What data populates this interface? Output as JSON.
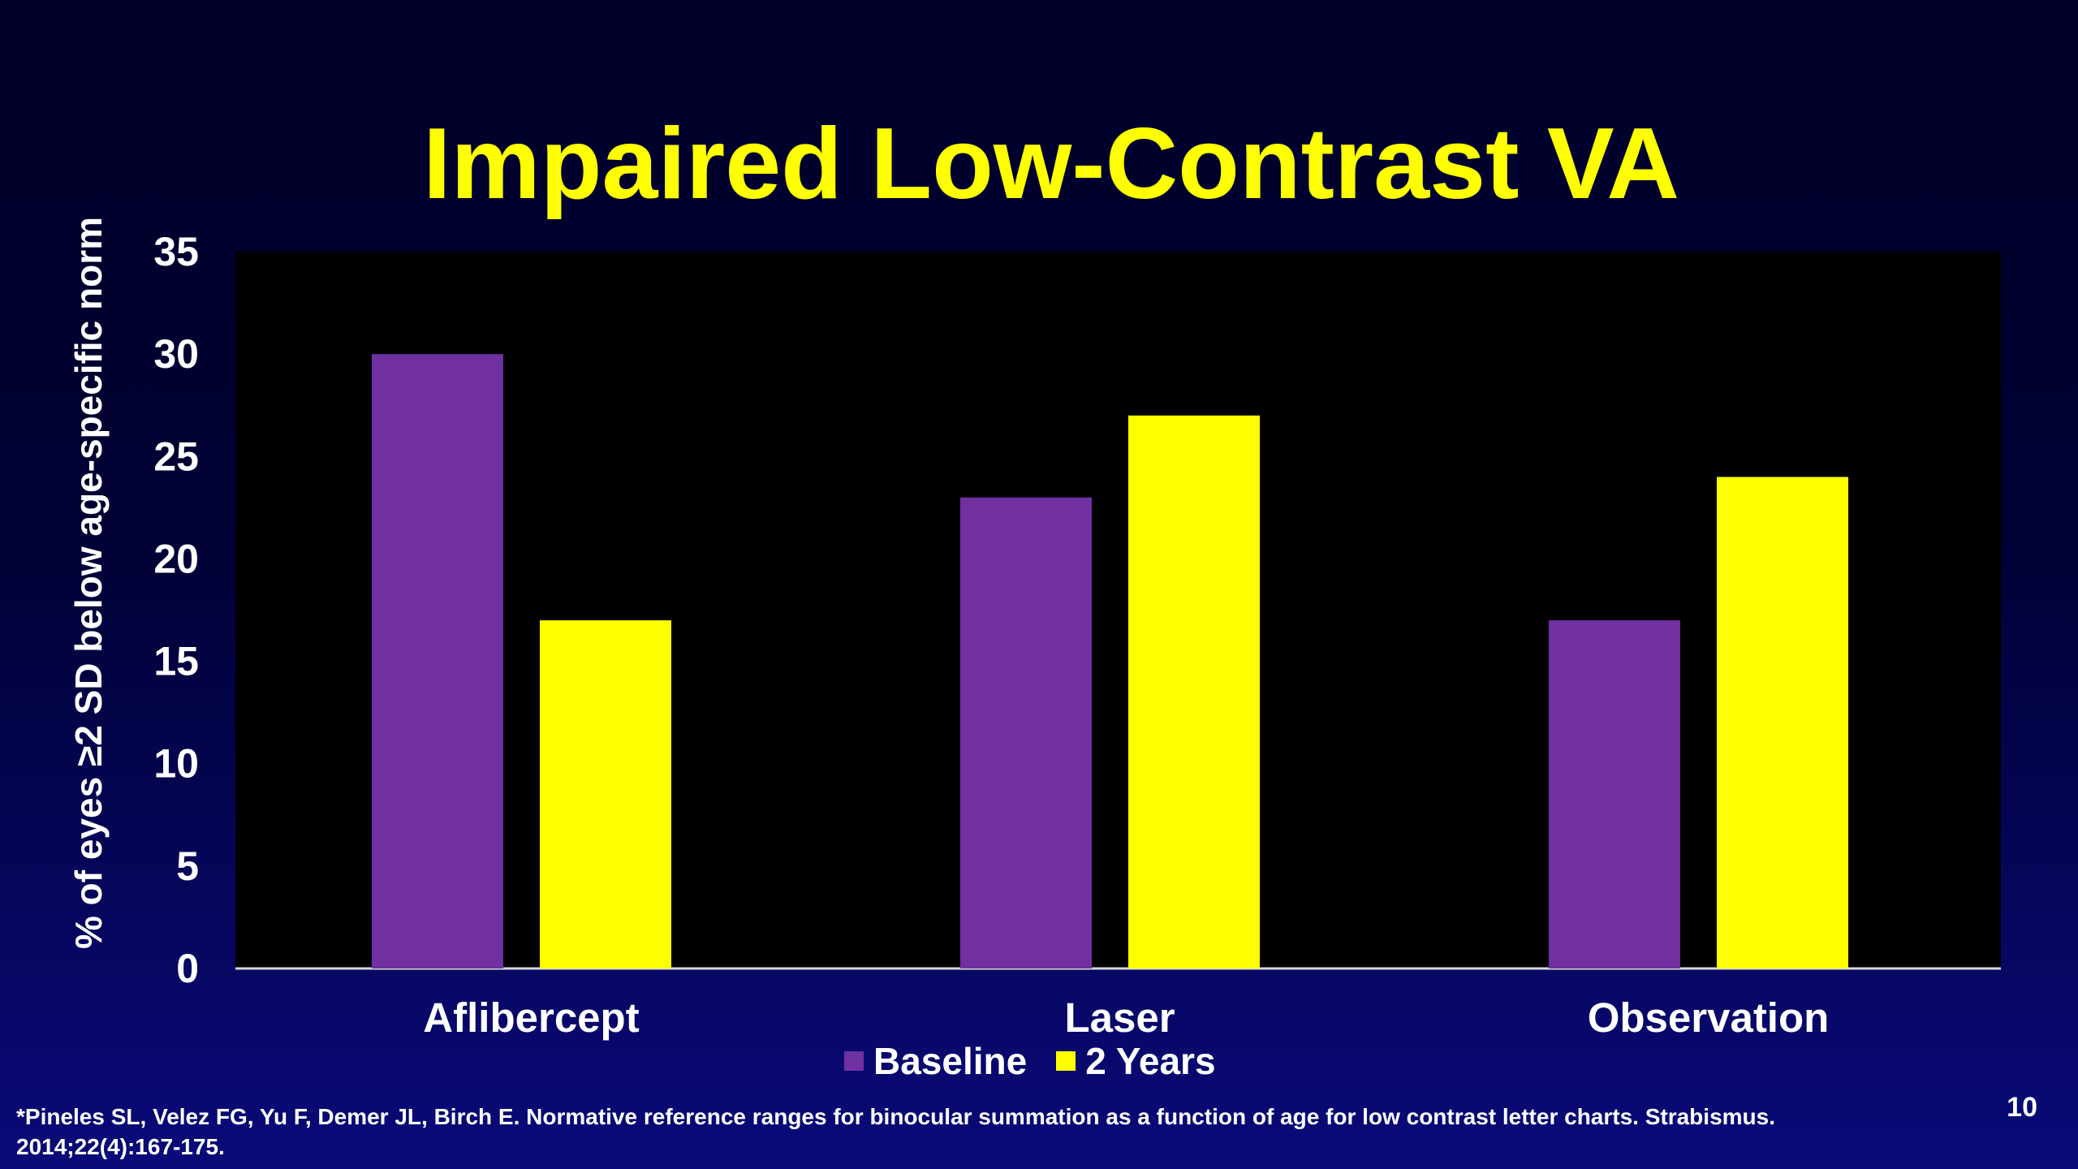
{
  "slide": {
    "title": "Impaired Low-Contrast VA",
    "footnote": "*Pineles SL, Velez FG, Yu F, Demer JL, Birch E. Normative reference ranges for binocular summation as a function of age for low contrast letter charts. Strabismus. 2014;22(4):167-175.",
    "page_number": "10"
  },
  "colors": {
    "background": "#000033",
    "plot_area": "#000000",
    "baseline": "#7030a0",
    "two_years": "#ffff00",
    "title": "#ffff00",
    "text": "#ffffff"
  },
  "chart_data": {
    "type": "bar",
    "title": "Impaired Low-Contrast VA",
    "xlabel": "",
    "ylabel": "% of eyes ≥2 SD below age-specific norm",
    "categories": [
      "Aflibercept",
      "Laser",
      "Observation"
    ],
    "series": [
      {
        "name": "Baseline",
        "color": "#7030a0",
        "values": [
          30,
          23,
          17
        ]
      },
      {
        "name": "2 Years",
        "color": "#ffff00",
        "values": [
          17,
          27,
          24
        ]
      }
    ],
    "ylim": [
      0,
      35
    ],
    "yticks": [
      "0",
      "5",
      "10",
      "15",
      "20",
      "25",
      "30",
      "35"
    ],
    "grid": false,
    "legend_position": "bottom"
  }
}
